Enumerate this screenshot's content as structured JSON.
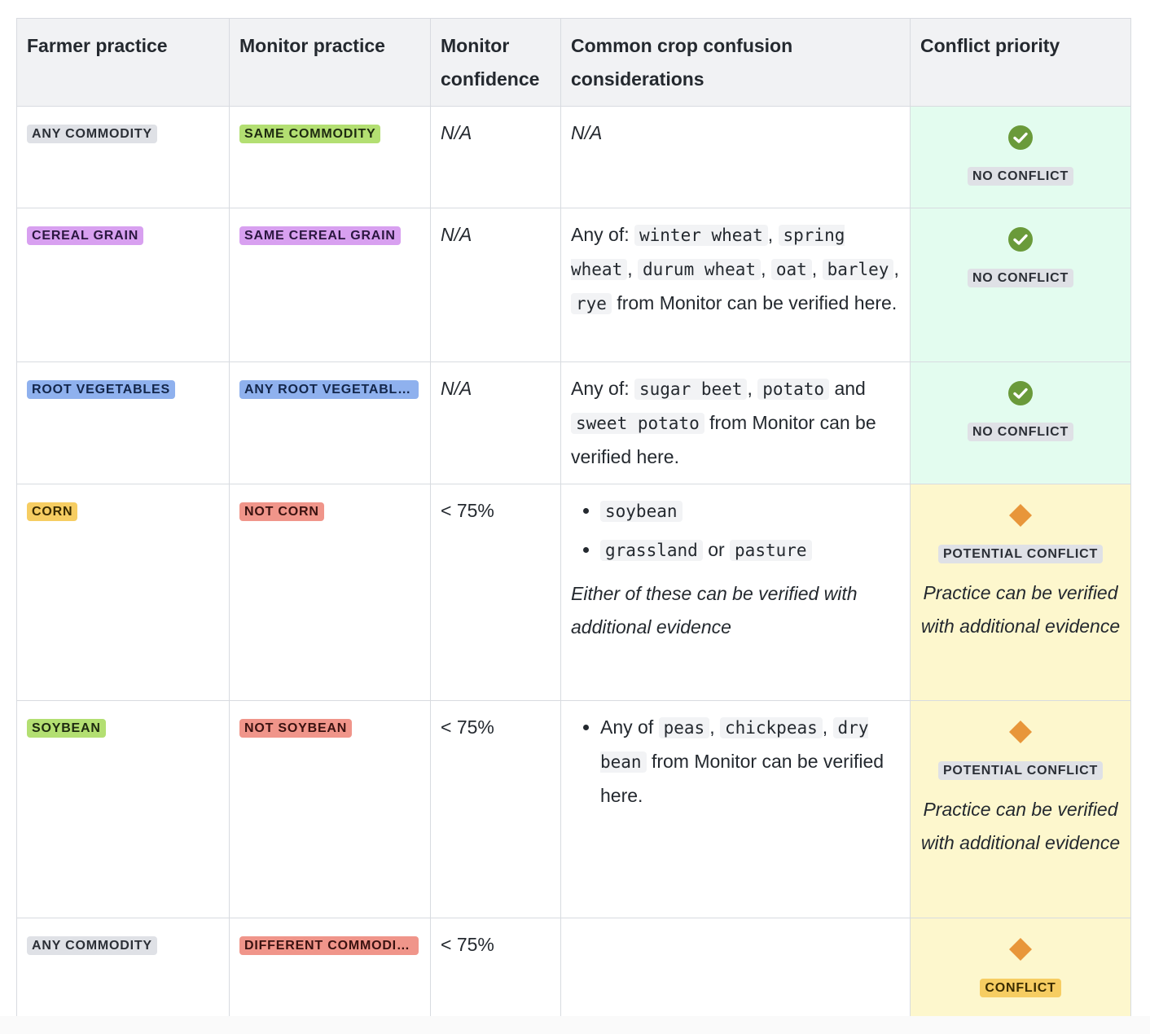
{
  "headers": {
    "farmer": "Farmer practice",
    "monitor": "Monitor practice",
    "confidence_line1": "Monitor",
    "confidence_line2": "confidence",
    "confusion_line1": "Common crop confusion",
    "confusion_line2": "considerations",
    "priority": "Conflict priority"
  },
  "colors": {
    "no_conflict_bg": "#e3fcef",
    "conflict_bg": "#fdf7cd",
    "check_green": "#6a9a3a",
    "diamond_orange": "#e8963a"
  },
  "rows": [
    {
      "farmer": "ANY COMMODITY",
      "monitor": "SAME COMMODITY",
      "confidence": "N/A",
      "confusion": "N/A",
      "priority_icon": "check-circle-icon",
      "priority": "NO CONFLICT"
    },
    {
      "farmer": "CEREAL GRAIN",
      "monitor": "SAME CEREAL GRAIN",
      "confidence": "N/A",
      "confusion_prefix": "Any of:",
      "confusion_codes": [
        "winter wheat",
        "spring wheat",
        "durum wheat",
        "oat",
        "barley",
        "rye"
      ],
      "confusion_suffix": "from Monitor can be verified here.",
      "priority_icon": "check-circle-icon",
      "priority": "NO CONFLICT"
    },
    {
      "farmer": "ROOT VEGETABLES",
      "monitor": "ANY ROOT VEGETABLES",
      "confidence": "N/A",
      "confusion_prefix": "Any of:",
      "confusion_codes": [
        "sugar beet",
        "potato",
        "sweet potato"
      ],
      "confusion_joiner": "and",
      "confusion_suffix": "from Monitor can be verified here.",
      "priority_icon": "check-circle-icon",
      "priority": "NO CONFLICT"
    },
    {
      "farmer": "CORN",
      "monitor": "NOT CORN",
      "confidence": "< 75%",
      "confusion_bullet1": "soybean",
      "confusion_bullet2_a": "grassland",
      "confusion_bullet2_or": "or",
      "confusion_bullet2_b": "pasture",
      "confusion_note": "Either of these can be verified with additional evidence",
      "priority_icon": "diamond-icon",
      "priority": "POTENTIAL CONFLICT",
      "priority_note": "Practice can be verified with additional evidence"
    },
    {
      "farmer": "SOYBEAN",
      "monitor": "NOT SOYBEAN",
      "confidence": "< 75%",
      "confusion_prefix": "Any of",
      "confusion_codes": [
        "peas",
        "chickpeas",
        "dry bean"
      ],
      "confusion_suffix": "from Monitor can be verified here.",
      "priority_icon": "diamond-icon",
      "priority": "POTENTIAL CONFLICT",
      "priority_note": "Practice can be verified with additional evidence"
    },
    {
      "farmer": "ANY COMMODITY",
      "monitor": "DIFFERENT COMMODITY",
      "confidence": "< 75%",
      "confusion": "",
      "priority_icon": "diamond-icon",
      "priority": "CONFLICT"
    }
  ]
}
